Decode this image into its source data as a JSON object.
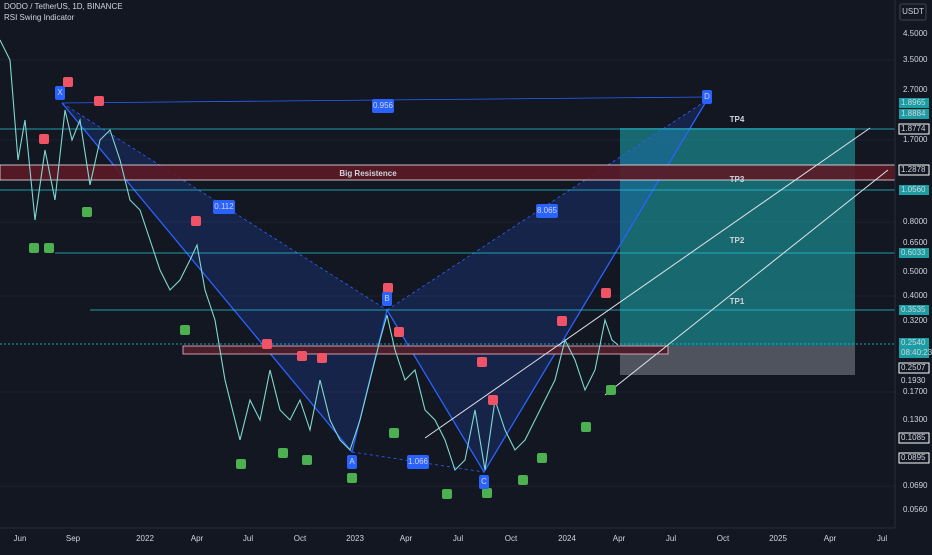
{
  "header": {
    "symbol": "DODO / TetherUS, 1D, BINANCE",
    "indicator": "RSI Swing Indicator"
  },
  "price_axis": {
    "currency": "USDT",
    "labels": [
      "4.5000",
      "3.5000",
      "2.7000",
      "1.7000",
      "0.8000",
      "0.6500",
      "0.5000",
      "0.4000",
      "0.3200",
      "0.1700",
      "0.1300",
      "0.0690",
      "0.0560"
    ],
    "markers": [
      "1.8965",
      "1.8884",
      "1.8774",
      "1.2878",
      "1.0560",
      "0.6033",
      "0.3535",
      "0.2540",
      "08:40:23",
      "0.2507",
      "0.1930",
      "0.1085",
      "0.0895"
    ]
  },
  "time_axis": [
    "Jun",
    "Sep",
    "2022",
    "Apr",
    "Jul",
    "Oct",
    "2023",
    "Apr",
    "Jul",
    "Oct",
    "2024",
    "Apr",
    "Jul",
    "Oct",
    "2025",
    "Apr",
    "Jul"
  ],
  "pattern": {
    "points": [
      "X",
      "A",
      "B",
      "C",
      "D"
    ],
    "ratios": [
      "0.956",
      "0.112",
      "8.065",
      "1.066"
    ]
  },
  "annotations": {
    "zone": "Big Resistence",
    "targets": [
      "TP4",
      "TP3",
      "TP2",
      "TP1"
    ]
  }
}
